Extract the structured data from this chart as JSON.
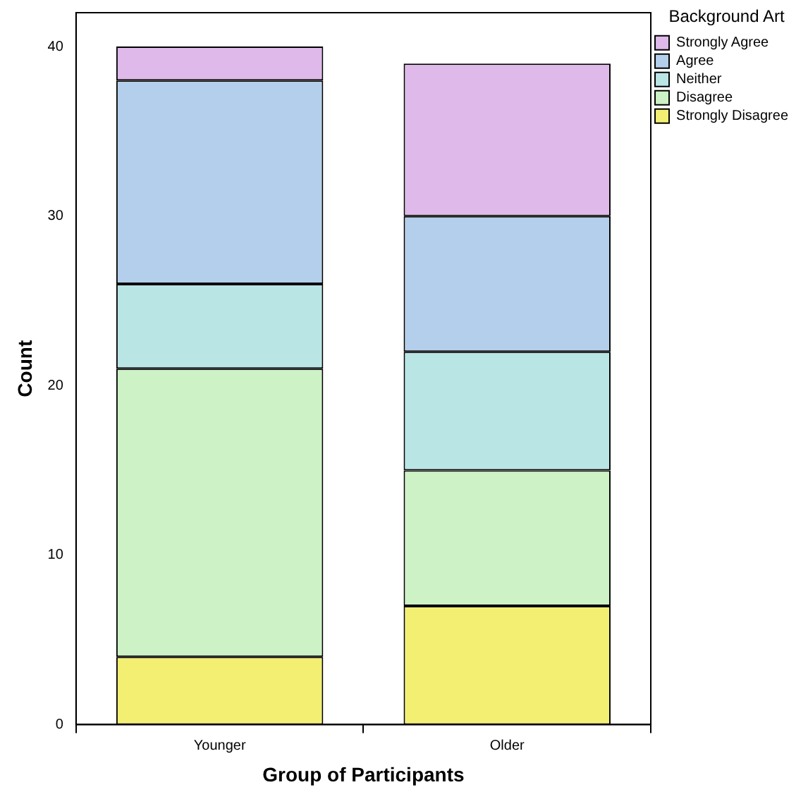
{
  "chart_data": {
    "type": "bar",
    "stacked": true,
    "xlabel": "Group of Participants",
    "ylabel": "Count",
    "legend_title": "Background Art",
    "categories": [
      "Younger",
      "Older"
    ],
    "ylim": [
      0,
      42
    ],
    "yticks": [
      0,
      10,
      20,
      30,
      40
    ],
    "grid": false,
    "legend": "top right",
    "series": [
      {
        "name": "Strongly Disagree",
        "color": "#f3ef72",
        "values": [
          4,
          7
        ]
      },
      {
        "name": "Disagree",
        "color": "#ccf2c5",
        "values": [
          17,
          8
        ]
      },
      {
        "name": "Neither",
        "color": "#b9e5e5",
        "values": [
          5,
          7
        ]
      },
      {
        "name": "Agree",
        "color": "#b3cfeb",
        "values": [
          12,
          8
        ]
      },
      {
        "name": "Strongly Agree",
        "color": "#deb9ea",
        "values": [
          2,
          9
        ]
      }
    ]
  }
}
